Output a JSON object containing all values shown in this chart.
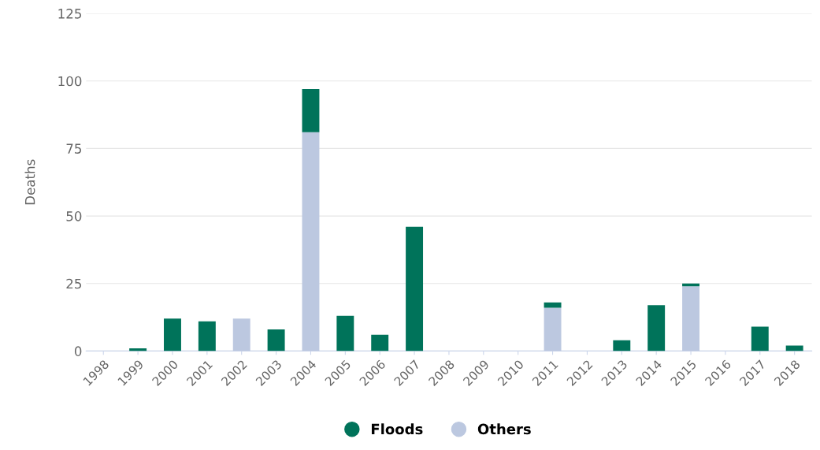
{
  "chart_data": {
    "type": "bar",
    "stacked": true,
    "ylabel": "Deaths",
    "categories": [
      "1998",
      "1999",
      "2000",
      "2001",
      "2002",
      "2003",
      "2004",
      "2005",
      "2006",
      "2007",
      "2008",
      "2009",
      "2010",
      "2011",
      "2012",
      "2013",
      "2014",
      "2015",
      "2016",
      "2017",
      "2018"
    ],
    "series": [
      {
        "name": "Others",
        "color": "#bcc8e0",
        "values": [
          0,
          0,
          0,
          0,
          12,
          0,
          81,
          0,
          0,
          0,
          0,
          0,
          0,
          16,
          0,
          0,
          0,
          24,
          0,
          0,
          0
        ]
      },
      {
        "name": "Floods",
        "color": "#00735a",
        "values": [
          0,
          1,
          12,
          11,
          0,
          8,
          16,
          13,
          6,
          46,
          0,
          0,
          0,
          2,
          0,
          4,
          17,
          1,
          0,
          9,
          2
        ]
      }
    ],
    "ylim": [
      0,
      125
    ],
    "yticks": [
      0,
      25,
      50,
      75,
      100,
      125
    ],
    "grid": "y",
    "legend": "bottom"
  }
}
